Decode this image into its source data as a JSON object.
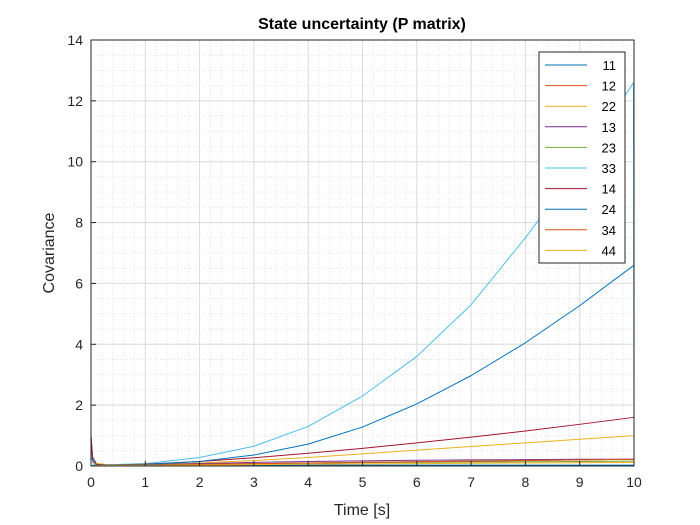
{
  "chart_data": {
    "type": "line",
    "title": "State uncertainty (P matrix)",
    "xlabel": "Time [s]",
    "ylabel": "Covariance",
    "xlim": [
      0,
      10
    ],
    "ylim": [
      0,
      14
    ],
    "xticks": [
      0,
      1,
      2,
      3,
      4,
      5,
      6,
      7,
      8,
      9,
      10
    ],
    "yticks": [
      0,
      2,
      4,
      6,
      8,
      10,
      12,
      14
    ],
    "grid": true,
    "minor_grid": true,
    "legend_position": "top-right",
    "series": [
      {
        "name": "11",
        "color": "#0072BD",
        "x": [
          0,
          0.03,
          0.1,
          0.3,
          1,
          2,
          4,
          6,
          8,
          10
        ],
        "y": [
          1.0,
          0.3,
          0.08,
          0.04,
          0.03,
          0.03,
          0.03,
          0.03,
          0.03,
          0.03
        ]
      },
      {
        "name": "12",
        "color": "#D95319",
        "x": [
          0,
          0.05,
          0.3,
          1,
          2,
          4,
          6,
          8,
          10
        ],
        "y": [
          0,
          0.02,
          0.03,
          0.04,
          0.06,
          0.1,
          0.14,
          0.18,
          0.22
        ]
      },
      {
        "name": "22",
        "color": "#EDB120",
        "x": [
          0,
          0.05,
          0.3,
          1,
          2,
          3,
          4,
          5,
          6,
          7,
          8,
          9,
          10
        ],
        "y": [
          0.5,
          0.1,
          0.04,
          0.05,
          0.1,
          0.18,
          0.28,
          0.4,
          0.52,
          0.64,
          0.76,
          0.88,
          1.0
        ]
      },
      {
        "name": "13",
        "color": "#7E2F8E",
        "x": [
          0,
          0.05,
          0.3,
          1,
          2,
          3,
          4,
          5,
          6,
          7,
          8,
          9,
          10
        ],
        "y": [
          0,
          0.01,
          0.02,
          0.04,
          0.08,
          0.12,
          0.15,
          0.17,
          0.19,
          0.2,
          0.21,
          0.22,
          0.22
        ]
      },
      {
        "name": "23",
        "color": "#77AC30",
        "x": [
          0,
          0.05,
          0.3,
          1,
          2,
          3,
          4,
          5,
          6,
          7,
          8,
          9,
          10
        ],
        "y": [
          0,
          0.01,
          0.02,
          0.03,
          0.05,
          0.07,
          0.09,
          0.11,
          0.12,
          0.13,
          0.14,
          0.15,
          0.16
        ]
      },
      {
        "name": "33",
        "color": "#4DBEEE",
        "x": [
          0,
          0.05,
          0.3,
          1,
          2,
          3,
          4,
          5,
          6,
          7,
          8,
          9,
          9.99,
          10
        ],
        "y": [
          0.3,
          0.05,
          0.04,
          0.08,
          0.28,
          0.65,
          1.3,
          2.3,
          3.6,
          5.3,
          7.5,
          9.9,
          12.6,
          0
        ]
      },
      {
        "name": "14",
        "color": "#A2142F",
        "x": [
          0,
          0.03,
          0.1,
          0.3,
          1,
          2,
          3,
          4,
          5,
          6,
          7,
          8,
          9,
          10
        ],
        "y": [
          1.0,
          0.2,
          0.05,
          0.03,
          0.06,
          0.15,
          0.27,
          0.42,
          0.58,
          0.76,
          0.95,
          1.15,
          1.37,
          1.6
        ]
      },
      {
        "name": "24",
        "color": "#0072BD",
        "x": [
          0,
          0.05,
          0.3,
          1,
          2,
          3,
          4,
          5,
          6,
          7,
          8,
          9,
          10
        ],
        "y": [
          0,
          0.02,
          0.03,
          0.05,
          0.15,
          0.36,
          0.72,
          1.28,
          2.04,
          2.97,
          4.05,
          5.27,
          6.6
        ]
      },
      {
        "name": "34",
        "color": "#D95319",
        "x": [
          0,
          0.05,
          0.3,
          1,
          2,
          4,
          6,
          8,
          10
        ],
        "y": [
          0,
          0.01,
          0.02,
          0.03,
          0.05,
          0.1,
          0.14,
          0.18,
          0.22
        ]
      },
      {
        "name": "44",
        "color": "#EDB120",
        "x": [
          0,
          0.05,
          0.3,
          1,
          2,
          4,
          6,
          8,
          10
        ],
        "y": [
          0,
          0.01,
          0.02,
          0.02,
          0.03,
          0.06,
          0.08,
          0.1,
          0.12
        ]
      }
    ]
  }
}
